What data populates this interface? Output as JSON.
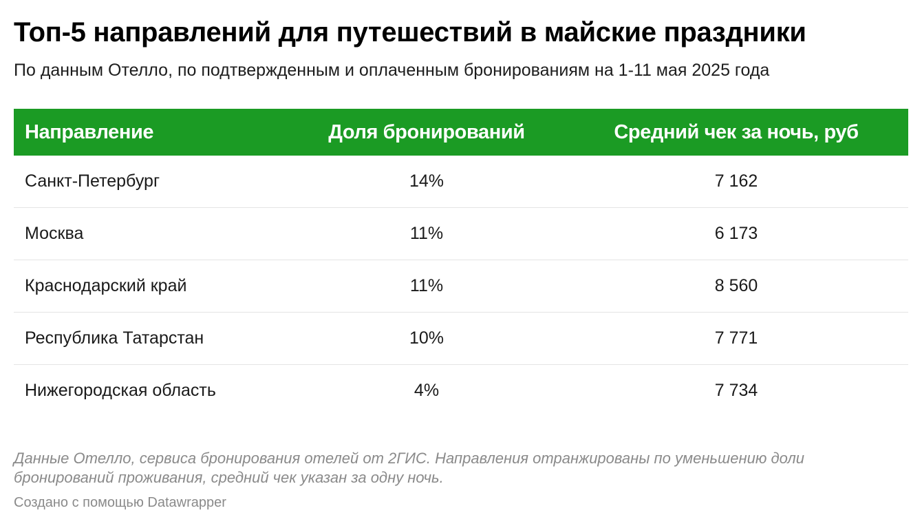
{
  "chart_data": {
    "type": "table",
    "title": "Топ-5 направлений для путешествий в майские праздники",
    "subtitle": "По данным Отелло, по подтвержденным и оплаченным бронированиям на 1-11 мая 2025 года",
    "columns": [
      "Направление",
      "Доля бронирований",
      "Средний чек за ночь, руб"
    ],
    "rows": [
      [
        "Санкт-Петербург",
        "14%",
        "7 162"
      ],
      [
        "Москва",
        "11%",
        "6 173"
      ],
      [
        "Краснодарский край",
        "11%",
        "8 560"
      ],
      [
        "Республика Татарстан",
        "10%",
        "7 771"
      ],
      [
        "Нижегородская область",
        "4%",
        "7 734"
      ]
    ],
    "notes": "Данные Отелло, сервиса бронирования отелей от 2ГИС. Направления отранжированы по уменьшению доли бронирований проживания, средний чек указан за одну ночь.",
    "credit": "Создано с помощью Datawrapper"
  },
  "colors": {
    "header_background": "#1b9b24",
    "header_text": "#ffffff",
    "notes_text": "#8a8a8a"
  }
}
